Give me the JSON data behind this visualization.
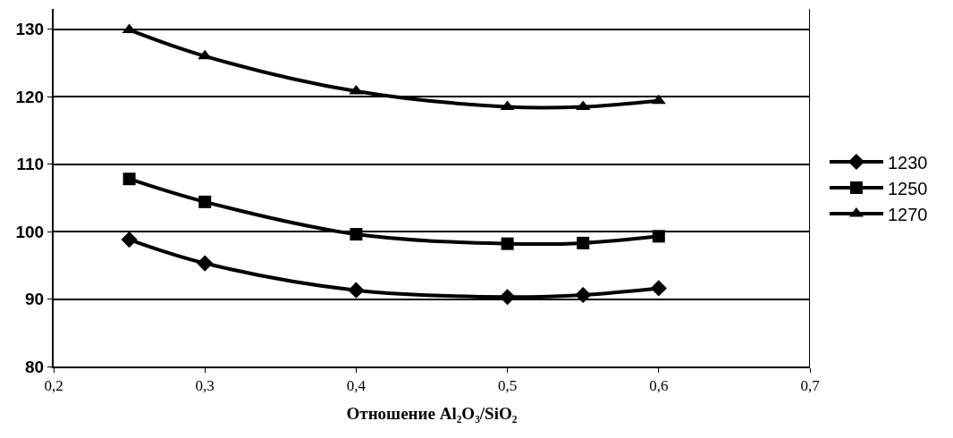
{
  "chart_data": {
    "type": "line",
    "xlabel": "Отношение Al₂O₃/SiO₂",
    "x": [
      0.25,
      0.3,
      0.4,
      0.5,
      0.55,
      0.6
    ],
    "series": [
      {
        "name": "1230",
        "color": "#000000",
        "marker": "diamond",
        "values": [
          98.8,
          95.3,
          91.3,
          90.3,
          90.6,
          91.6
        ]
      },
      {
        "name": "1250",
        "color": "#000000",
        "marker": "square",
        "values": [
          107.8,
          104.4,
          99.6,
          98.2,
          98.3,
          99.3
        ]
      },
      {
        "name": "1270",
        "color": "#000000",
        "marker": "triangle",
        "values": [
          129.9,
          126.0,
          120.8,
          118.5,
          118.5,
          119.4
        ]
      }
    ],
    "xlim": [
      0.2,
      0.7
    ],
    "ylim": [
      80,
      133
    ],
    "xticks": [
      {
        "value": 0.2,
        "label": "0,2"
      },
      {
        "value": 0.3,
        "label": "0,3"
      },
      {
        "value": 0.4,
        "label": "0,4"
      },
      {
        "value": 0.5,
        "label": "0,5"
      },
      {
        "value": 0.6,
        "label": "0,6"
      },
      {
        "value": 0.7,
        "label": "0,7"
      }
    ],
    "yticks": [
      80,
      90,
      100,
      110,
      120,
      130
    ],
    "grid": "y",
    "legend": "right",
    "line_style": "solid"
  }
}
